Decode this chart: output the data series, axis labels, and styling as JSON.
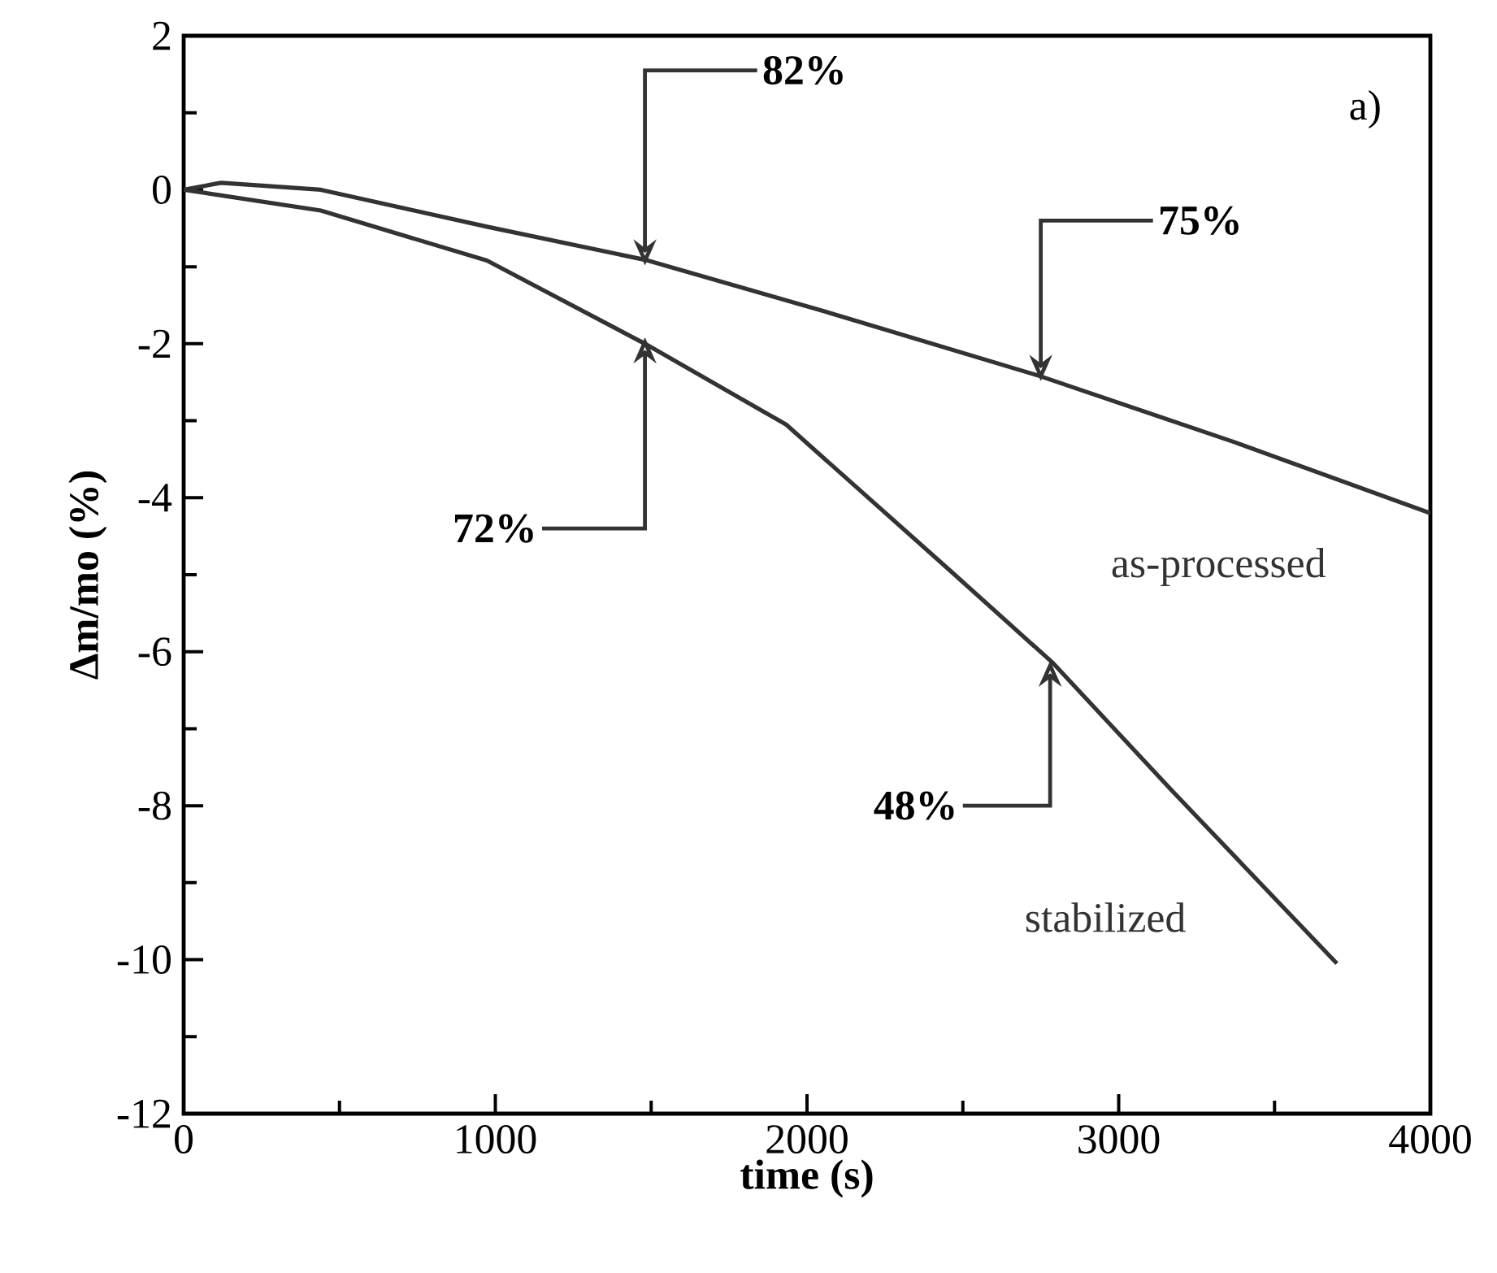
{
  "chart_data": {
    "type": "line",
    "xlabel": "time (s)",
    "ylabel": "Δm/mo (%)",
    "xlim": [
      0,
      4000
    ],
    "ylim": [
      -12,
      2
    ],
    "xticks": [
      0,
      1000,
      2000,
      3000,
      4000
    ],
    "yticks": [
      -12,
      -10,
      -8,
      -6,
      -4,
      -2,
      0,
      2
    ],
    "grid": false,
    "legend": false,
    "marker": "none",
    "line_style": "solid",
    "series": [
      {
        "name": "as-processed",
        "color": "#333333",
        "x": [
          0,
          120,
          440,
          973,
          1480,
          2040,
          2747,
          3373,
          4000
        ],
        "values": [
          0,
          0.09,
          0,
          -0.48,
          -0.91,
          -1.56,
          -2.42,
          -3.28,
          -4.2
        ]
      },
      {
        "name": "stabilized",
        "color": "#333333",
        "x": [
          0,
          440,
          973,
          1480,
          1933,
          2460,
          2790,
          3170,
          3700
        ],
        "values": [
          0,
          -0.27,
          -0.92,
          -2.0,
          -3.05,
          -4.95,
          -6.15,
          -7.8,
          -10.05
        ]
      }
    ],
    "annotations": [
      {
        "text": "82%",
        "x": 1480,
        "y": -0.9
      },
      {
        "text": "75%",
        "x": 2750,
        "y": -2.4
      },
      {
        "text": "72%",
        "x": 1480,
        "y": -2.0
      },
      {
        "text": "48%",
        "x": 2780,
        "y": -6.2
      },
      "a)"
    ]
  }
}
